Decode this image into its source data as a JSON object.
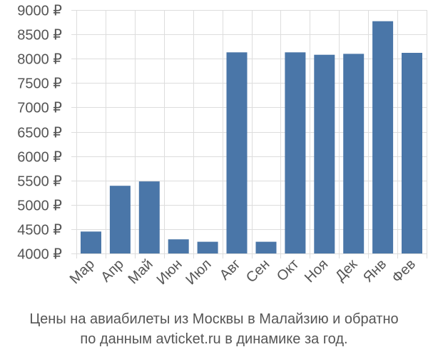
{
  "chart_data": {
    "type": "bar",
    "categories": [
      "Мар",
      "Апр",
      "Май",
      "Июн",
      "Июл",
      "Авг",
      "Сен",
      "Окт",
      "Ноя",
      "Дек",
      "Янв",
      "Фев"
    ],
    "values": [
      4450,
      5390,
      5480,
      4290,
      4240,
      8130,
      4240,
      8130,
      8080,
      8100,
      8770,
      8120
    ],
    "y_ticks": [
      "4000 ₽",
      "4500 ₽",
      "5000 ₽",
      "5500 ₽",
      "6000 ₽",
      "6500 ₽",
      "7000 ₽",
      "7500 ₽",
      "8000 ₽",
      "8500 ₽",
      "9000 ₽"
    ],
    "y_tick_values": [
      4000,
      4500,
      5000,
      5500,
      6000,
      6500,
      7000,
      7500,
      8000,
      8500,
      9000
    ],
    "ylim": [
      4000,
      9000
    ],
    "grid": true,
    "bar_color": "#4a76a8",
    "grid_color": "#dddddd",
    "caption_lines": [
      "Цены на авиабилеты из Москвы в Малайзию и обратно",
      "по данным avticket.ru в динамике за год."
    ]
  }
}
